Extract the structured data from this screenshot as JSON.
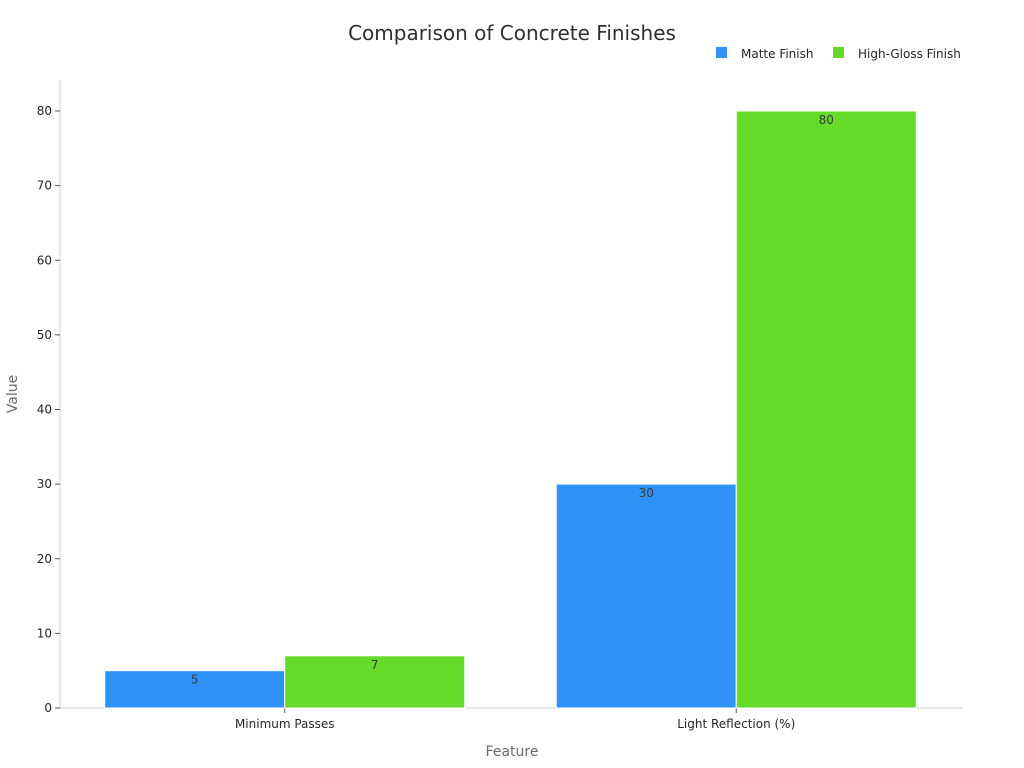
{
  "chart_data": {
    "type": "bar",
    "title": "Comparison of Concrete Finishes",
    "xlabel": "Feature",
    "ylabel": "Value",
    "categories": [
      "Minimum Passes",
      "Light Reflection (%)"
    ],
    "series": [
      {
        "name": "Matte Finish",
        "color": "#2f92f7",
        "values": [
          5,
          30
        ]
      },
      {
        "name": "High-Gloss Finish",
        "color": "#66da28",
        "values": [
          7,
          80
        ]
      }
    ],
    "ylim": [
      0,
      84
    ],
    "yticks": [
      0,
      10,
      20,
      30,
      40,
      50,
      60,
      70,
      80
    ],
    "grid": false,
    "legend_position": "top-right",
    "data_labels": true
  }
}
